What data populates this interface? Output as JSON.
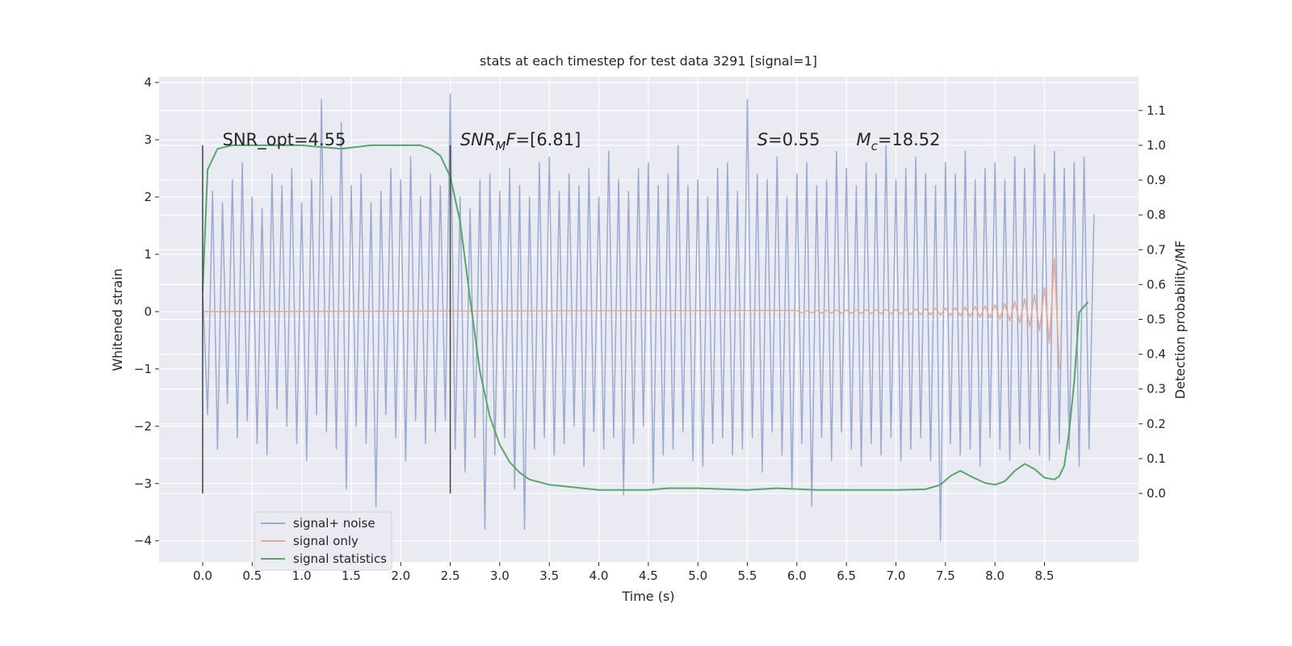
{
  "chart_data": {
    "type": "line",
    "title": "stats at each timestep for test data 3291 [signal=1]",
    "x_label": "Time (s)",
    "y_label": "Whitened strain",
    "y2_label": "Detection probability/MF",
    "xlim": [
      -0.44,
      9.45
    ],
    "ylim": [
      -4.37,
      4.1
    ],
    "y2lim": [
      -0.197,
      1.197
    ],
    "xticks": [
      {
        "value": 0,
        "label": "0.0"
      },
      0.5,
      {
        "value": 1,
        "label": "1.0"
      },
      1.5,
      {
        "value": 2,
        "label": "2.0"
      },
      2.5,
      {
        "value": 3,
        "label": "3.0"
      },
      3.5,
      {
        "value": 4,
        "label": "4.0"
      },
      4.5,
      {
        "value": 5,
        "label": "5.0"
      },
      5.5,
      {
        "value": 6,
        "label": "6.0"
      },
      6.5,
      {
        "value": 7,
        "label": "7.0"
      },
      7.5,
      {
        "value": 8,
        "label": "8.0"
      },
      8.5
    ],
    "yticks": [
      {
        "value": -4,
        "label": "−4"
      },
      {
        "value": -3,
        "label": "−3"
      },
      {
        "value": -2,
        "label": "−2"
      },
      {
        "value": -1,
        "label": "−1"
      },
      0,
      1,
      2,
      3,
      4
    ],
    "y2ticks": [
      {
        "value": 0,
        "label": "0.0"
      },
      0.1,
      0.2,
      0.3,
      0.4,
      0.5,
      0.6,
      0.7,
      0.8,
      0.9,
      {
        "value": 1,
        "label": "1.0"
      },
      1.1
    ],
    "grid": true,
    "legend": "lower left",
    "series": [
      {
        "name": "signal+ noise",
        "color": "#9aabd2",
        "x": [
          0,
          0.05,
          0.1,
          0.15,
          0.2,
          0.25,
          0.3,
          0.35,
          0.4,
          0.45,
          0.5,
          0.55,
          0.6,
          0.65,
          0.7,
          0.75,
          0.8,
          0.85,
          0.9,
          0.95,
          1,
          1.05,
          1.1,
          1.15,
          1.2,
          1.25,
          1.3,
          1.35,
          1.4,
          1.45,
          1.5,
          1.55,
          1.6,
          1.65,
          1.7,
          1.75,
          1.8,
          1.85,
          1.9,
          1.95,
          2,
          2.05,
          2.1,
          2.15,
          2.2,
          2.25,
          2.3,
          2.35,
          2.4,
          2.45,
          2.5,
          2.55,
          2.6,
          2.65,
          2.7,
          2.75,
          2.8,
          2.85,
          2.9,
          2.95,
          3,
          3.05,
          3.1,
          3.15,
          3.2,
          3.25,
          3.3,
          3.35,
          3.4,
          3.45,
          3.5,
          3.55,
          3.6,
          3.65,
          3.7,
          3.75,
          3.8,
          3.85,
          3.9,
          3.95,
          4,
          4.05,
          4.1,
          4.15,
          4.2,
          4.25,
          4.3,
          4.35,
          4.4,
          4.45,
          4.5,
          4.55,
          4.6,
          4.65,
          4.7,
          4.75,
          4.8,
          4.85,
          4.9,
          4.95,
          5,
          5.05,
          5.1,
          5.15,
          5.2,
          5.25,
          5.3,
          5.35,
          5.4,
          5.45,
          5.5,
          5.55,
          5.6,
          5.65,
          5.7,
          5.75,
          5.8,
          5.85,
          5.9,
          5.95,
          6,
          6.05,
          6.1,
          6.15,
          6.2,
          6.25,
          6.3,
          6.35,
          6.4,
          6.45,
          6.5,
          6.55,
          6.6,
          6.65,
          6.7,
          6.75,
          6.8,
          6.85,
          6.9,
          6.95,
          7,
          7.05,
          7.1,
          7.15,
          7.2,
          7.25,
          7.3,
          7.35,
          7.4,
          7.45,
          7.5,
          7.55,
          7.6,
          7.65,
          7.7,
          7.75,
          7.8,
          7.85,
          7.9,
          7.95,
          8,
          8.05,
          8.1,
          8.15,
          8.2,
          8.25,
          8.3,
          8.35,
          8.4,
          8.45,
          8.5,
          8.55,
          8.6,
          8.65,
          8.7,
          8.75,
          8.8,
          8.85,
          8.9,
          8.95,
          9
        ],
        "values": [
          0.4,
          -1.8,
          2.1,
          -2.4,
          1.9,
          -1.6,
          2.3,
          -2.2,
          2.6,
          -1.9,
          2.0,
          -2.3,
          1.8,
          -2.5,
          2.4,
          -1.7,
          2.2,
          -2.0,
          2.5,
          -2.3,
          1.9,
          -2.6,
          2.3,
          -1.8,
          3.7,
          -2.1,
          2.0,
          -2.4,
          3.3,
          -3.1,
          2.2,
          -2.0,
          2.4,
          -2.3,
          1.9,
          -3.4,
          2.1,
          -1.8,
          2.5,
          -2.2,
          2.3,
          -2.6,
          2.7,
          -1.9,
          2.0,
          -2.3,
          2.4,
          -2.1,
          2.2,
          -1.9,
          3.8,
          -2.4,
          2.0,
          -2.8,
          1.8,
          -2.2,
          2.3,
          -3.8,
          2.4,
          -2.5,
          2.1,
          -2.2,
          2.5,
          -3.1,
          2.2,
          -3.8,
          2.0,
          -2.4,
          2.6,
          -2.2,
          2.7,
          -2.5,
          2.1,
          -2.3,
          2.4,
          -2.0,
          2.2,
          -2.7,
          2.5,
          -2.1,
          2.0,
          -2.4,
          2.8,
          -2.2,
          2.3,
          -3.2,
          2.1,
          -2.3,
          2.5,
          -2.0,
          2.6,
          -3.0,
          2.2,
          -2.5,
          2.4,
          -2.4,
          2.9,
          -2.1,
          2.2,
          -2.6,
          2.3,
          -2.7,
          2.0,
          -2.3,
          2.5,
          -2.2,
          2.6,
          -2.5,
          2.1,
          -2.4,
          3.7,
          -2.2,
          2.4,
          -2.8,
          2.3,
          -2.1,
          2.7,
          -2.5,
          2.0,
          -3.1,
          2.4,
          -2.3,
          2.6,
          -3.4,
          2.2,
          -2.2,
          2.3,
          -2.6,
          2.8,
          -2.1,
          2.5,
          -2.4,
          2.2,
          -2.7,
          2.6,
          -2.3,
          2.4,
          -2.5,
          2.9,
          -2.2,
          2.3,
          -2.6,
          2.5,
          -2.4,
          2.7,
          -2.2,
          2.4,
          -2.6,
          2.2,
          -4.0,
          2.6,
          -2.3,
          2.4,
          -2.5,
          2.8,
          -2.4,
          2.3,
          -2.7,
          2.5,
          -2.2,
          2.6,
          -2.4,
          2.3,
          -2.6,
          2.7,
          -2.3,
          2.5,
          -2.4,
          2.9,
          -2.5,
          2.4,
          -2.6,
          2.8,
          -2.3,
          2.5,
          -2.4,
          2.6,
          -2.7,
          2.7,
          -2.4,
          1.7
        ]
      },
      {
        "name": "signal only",
        "color": "#e8a98a",
        "x": [
          0,
          6,
          6.05,
          6.1,
          6.15,
          6.2,
          6.25,
          6.3,
          6.35,
          6.4,
          6.45,
          6.5,
          6.55,
          6.6,
          6.65,
          6.7,
          6.75,
          6.8,
          6.85,
          6.9,
          6.95,
          7,
          7.05,
          7.1,
          7.15,
          7.2,
          7.25,
          7.3,
          7.35,
          7.4,
          7.45,
          7.5,
          7.55,
          7.6,
          7.65,
          7.7,
          7.75,
          7.8,
          7.85,
          7.9,
          7.95,
          8,
          8.05,
          8.1,
          8.15,
          8.2,
          8.25,
          8.3,
          8.35,
          8.4,
          8.45,
          8.5,
          8.55,
          8.6,
          8.65
        ],
        "values": [
          0,
          0.02,
          -0.02,
          0.02,
          -0.02,
          0.025,
          -0.025,
          0.025,
          -0.025,
          0.03,
          -0.03,
          0.03,
          -0.03,
          0.03,
          -0.03,
          0.035,
          -0.035,
          0.035,
          -0.035,
          0.04,
          -0.04,
          0.04,
          -0.045,
          0.045,
          -0.05,
          0.05,
          -0.05,
          0.055,
          -0.055,
          0.06,
          -0.06,
          0.065,
          -0.07,
          0.07,
          -0.075,
          0.08,
          -0.085,
          0.09,
          -0.095,
          0.1,
          -0.11,
          0.12,
          -0.13,
          0.14,
          -0.16,
          0.18,
          -0.2,
          0.23,
          -0.26,
          0.3,
          -0.34,
          0.42,
          -0.55,
          0.93,
          -1.0
        ]
      },
      {
        "name": "signal statistics",
        "color": "#55a868",
        "axis": "y2",
        "x": [
          0,
          0.05,
          0.15,
          0.3,
          1,
          1.4,
          1.7,
          2.2,
          2.3,
          2.4,
          2.5,
          2.6,
          2.7,
          2.8,
          2.9,
          3,
          3.1,
          3.2,
          3.3,
          3.5,
          4,
          4.5,
          4.7,
          5,
          5.5,
          5.8,
          6.2,
          6.5,
          7,
          7.3,
          7.45,
          7.55,
          7.65,
          7.75,
          7.9,
          8,
          8.1,
          8.2,
          8.3,
          8.4,
          8.5,
          8.6,
          8.65,
          8.7,
          8.75,
          8.8,
          8.85,
          8.94
        ],
        "values": [
          0.58,
          0.93,
          0.99,
          1.0,
          1.0,
          0.99,
          1.0,
          1.0,
          0.99,
          0.97,
          0.91,
          0.78,
          0.56,
          0.35,
          0.22,
          0.14,
          0.09,
          0.06,
          0.04,
          0.025,
          0.01,
          0.01,
          0.015,
          0.015,
          0.01,
          0.015,
          0.01,
          0.01,
          0.01,
          0.012,
          0.025,
          0.05,
          0.065,
          0.05,
          0.03,
          0.025,
          0.035,
          0.065,
          0.085,
          0.07,
          0.045,
          0.04,
          0.05,
          0.08,
          0.18,
          0.32,
          0.52,
          0.55
        ]
      }
    ],
    "vlines": [
      {
        "x": 0,
        "ymin": 0,
        "ymax": 1.0,
        "axis": "y2"
      },
      {
        "x": 2.5,
        "ymin": 0,
        "ymax": 1.0,
        "axis": "y2"
      }
    ],
    "annotations": [
      {
        "x": 0.2,
        "y": 1.0,
        "segments": [
          {
            "text": "SNR_opt=4.55"
          }
        ]
      },
      {
        "x": 2.6,
        "y": 1.0,
        "segments": [
          {
            "text": "SNR",
            "italic": true
          },
          {
            "text": "M",
            "italic": true,
            "sub": true
          },
          {
            "text": "F",
            "italic": true
          },
          {
            "text": "=[6.81]"
          }
        ]
      },
      {
        "x": 5.6,
        "y": 1.0,
        "segments": [
          {
            "text": "S",
            "italic": true
          },
          {
            "text": "=0.55"
          }
        ]
      },
      {
        "x": 6.6,
        "y": 1.0,
        "segments": [
          {
            "text": "M",
            "italic": true
          },
          {
            "text": "c",
            "italic": true,
            "sub": true
          },
          {
            "text": "=18.52"
          }
        ]
      }
    ]
  }
}
